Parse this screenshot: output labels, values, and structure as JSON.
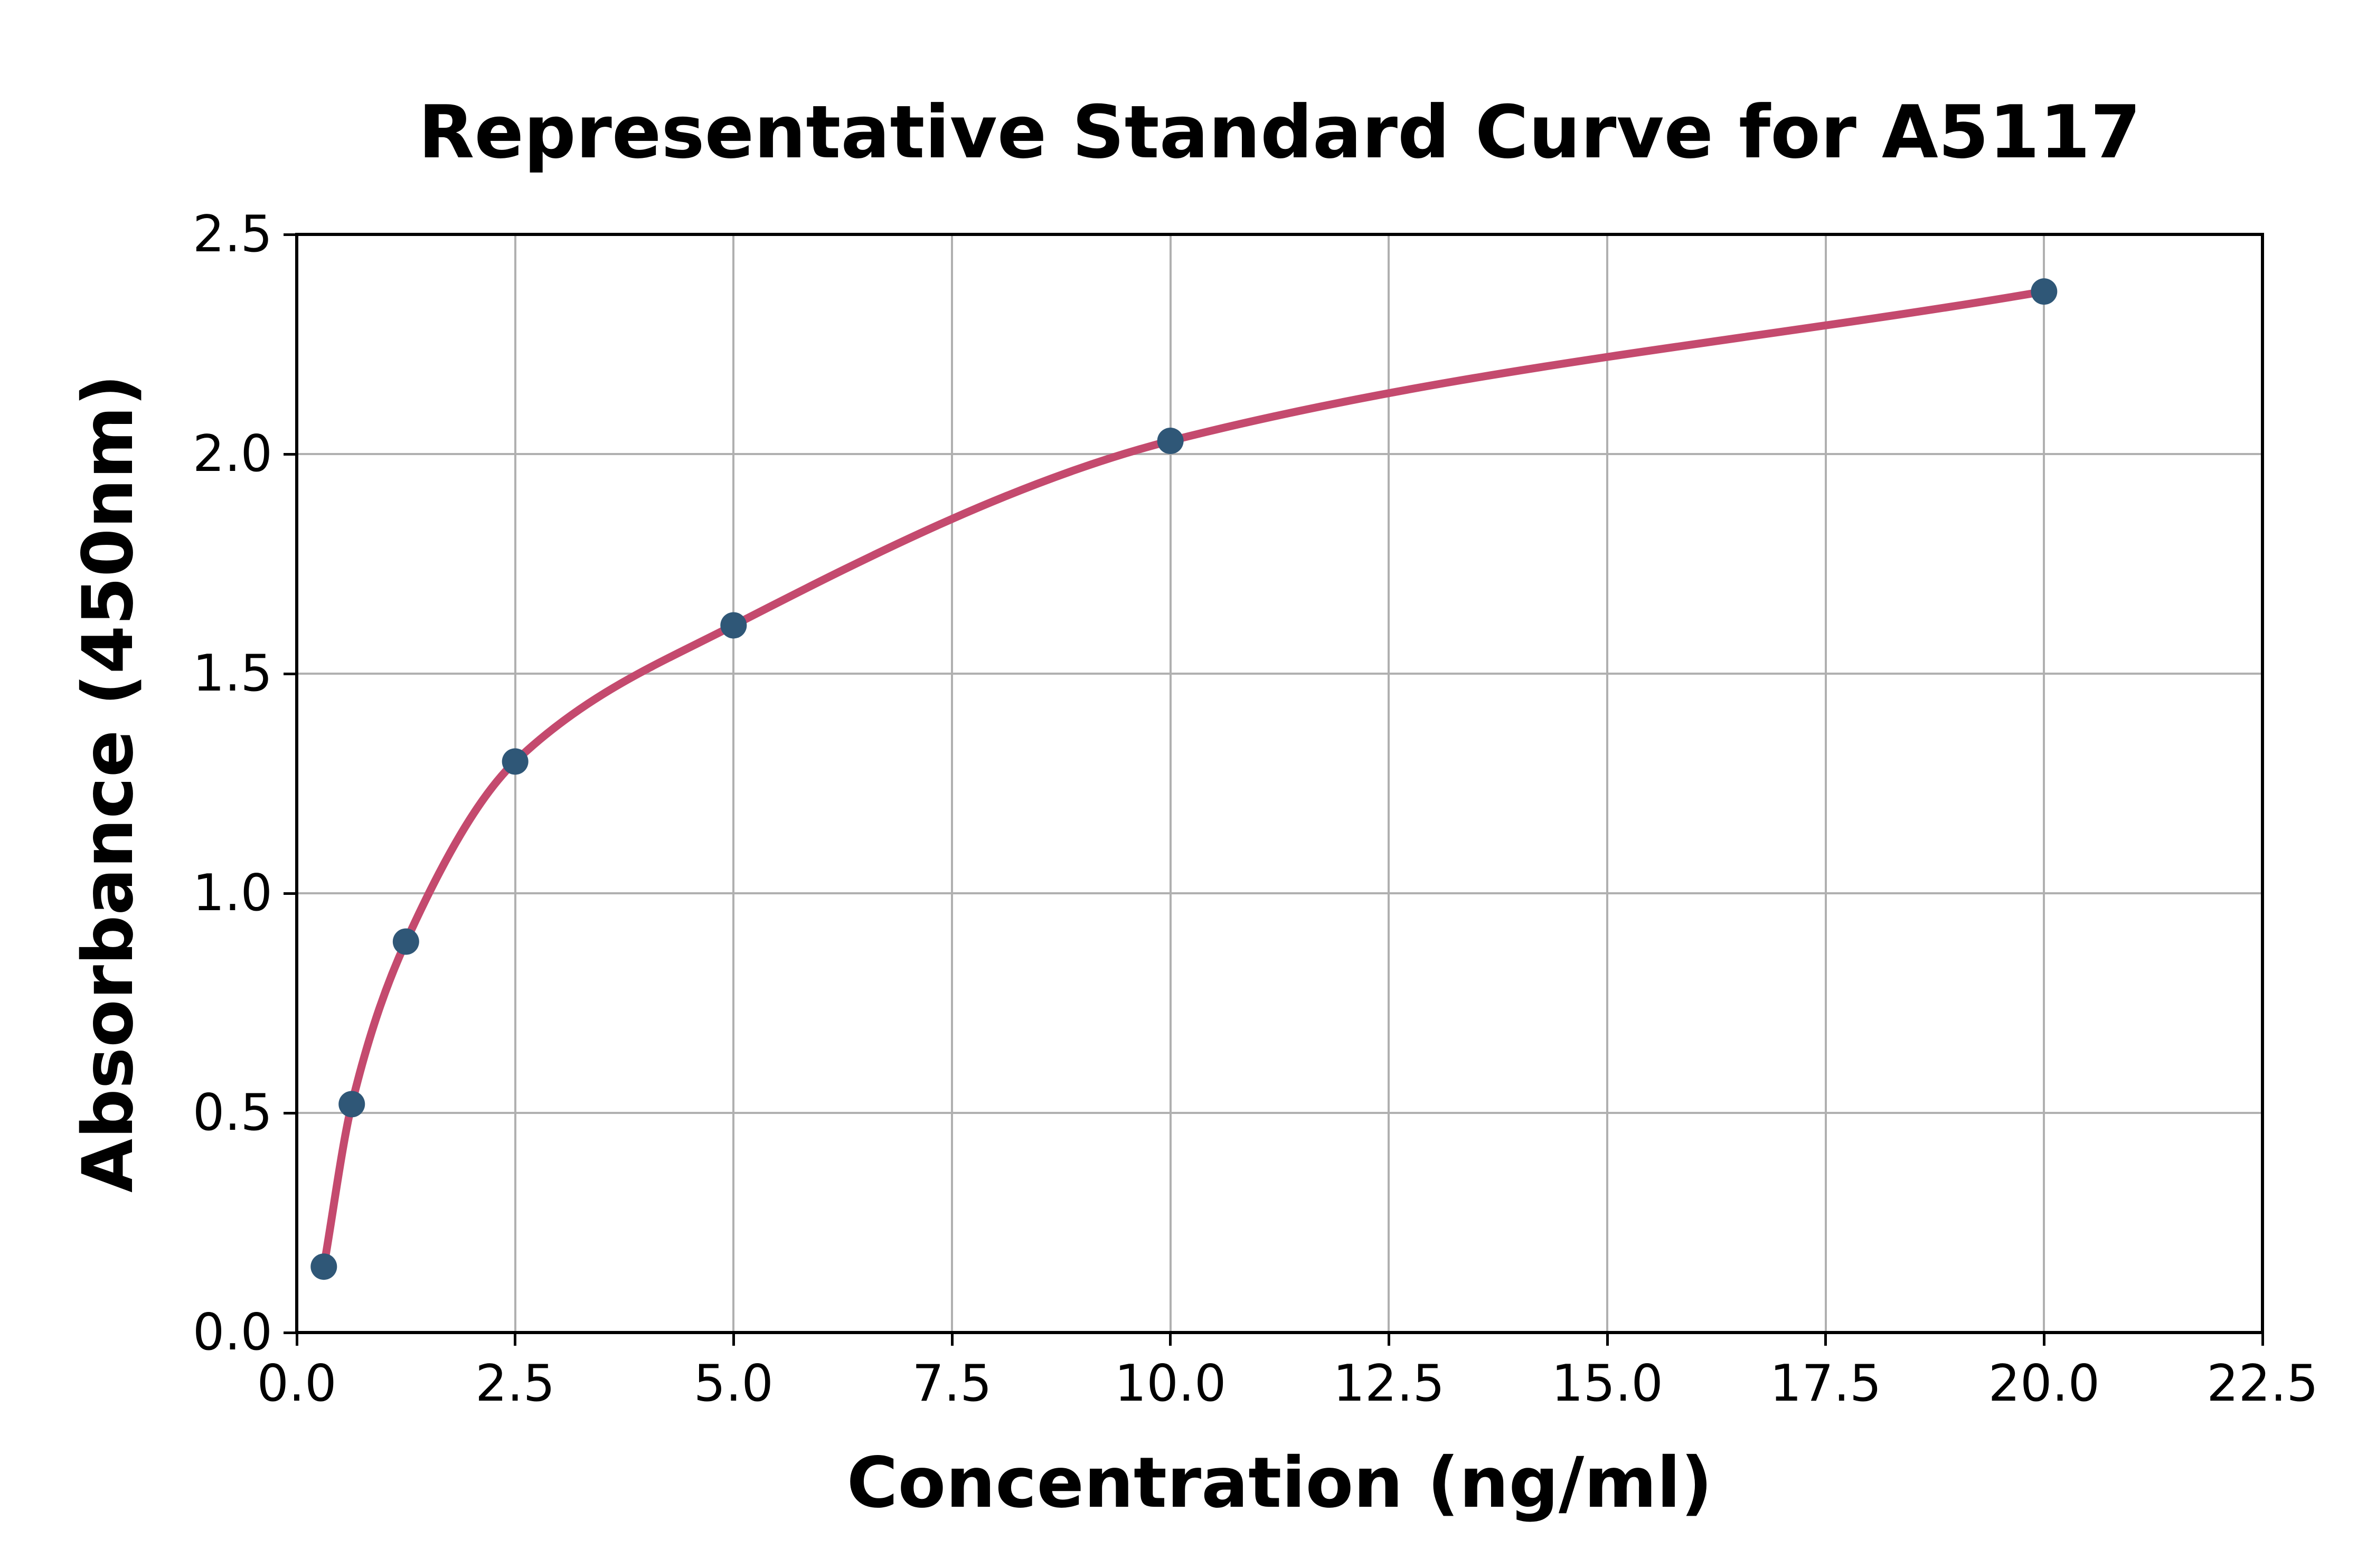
{
  "chart_data": {
    "type": "scatter",
    "title": "Representative Standard Curve for A5117",
    "xlabel": "Concentration (ng/ml)",
    "ylabel": "Absorbance (450nm)",
    "xlim": [
      0,
      22.5
    ],
    "ylim": [
      0,
      2.5
    ],
    "grid": true,
    "legend": "none",
    "x_tick_values": [
      0,
      2.5,
      5,
      7.5,
      10,
      12.5,
      15,
      17.5,
      20,
      22.5
    ],
    "x_tick_labels": [
      "0.0",
      "2.5",
      "5.0",
      "7.5",
      "10.0",
      "12.5",
      "15.0",
      "17.5",
      "20.0",
      "22.5"
    ],
    "y_tick_values": [
      0,
      0.5,
      1,
      1.5,
      2,
      2.5
    ],
    "y_tick_labels": [
      "0.0",
      "0.5",
      "1.0",
      "1.5",
      "2.0",
      "2.5"
    ],
    "series": [
      {
        "name": "standards",
        "type": "scatter",
        "marker": "circle",
        "color": "#2f5777",
        "points": [
          {
            "x": 0.31,
            "y": 0.15
          },
          {
            "x": 0.63,
            "y": 0.52
          },
          {
            "x": 1.25,
            "y": 0.89
          },
          {
            "x": 2.5,
            "y": 1.3
          },
          {
            "x": 5.0,
            "y": 1.61
          },
          {
            "x": 10.0,
            "y": 2.03
          },
          {
            "x": 20.0,
            "y": 2.37
          }
        ]
      },
      {
        "name": "fitted-curve",
        "type": "line",
        "color": "#c44a6e",
        "description": "smooth 4-parameter-logistic fit passing through the standard points from x=0.31 to x=20.0"
      }
    ],
    "colors": {
      "background": "#ffffff",
      "grid": "#b0b0b0",
      "axes": "#000000",
      "curve": "#c44a6e",
      "points": "#2f5777"
    }
  }
}
